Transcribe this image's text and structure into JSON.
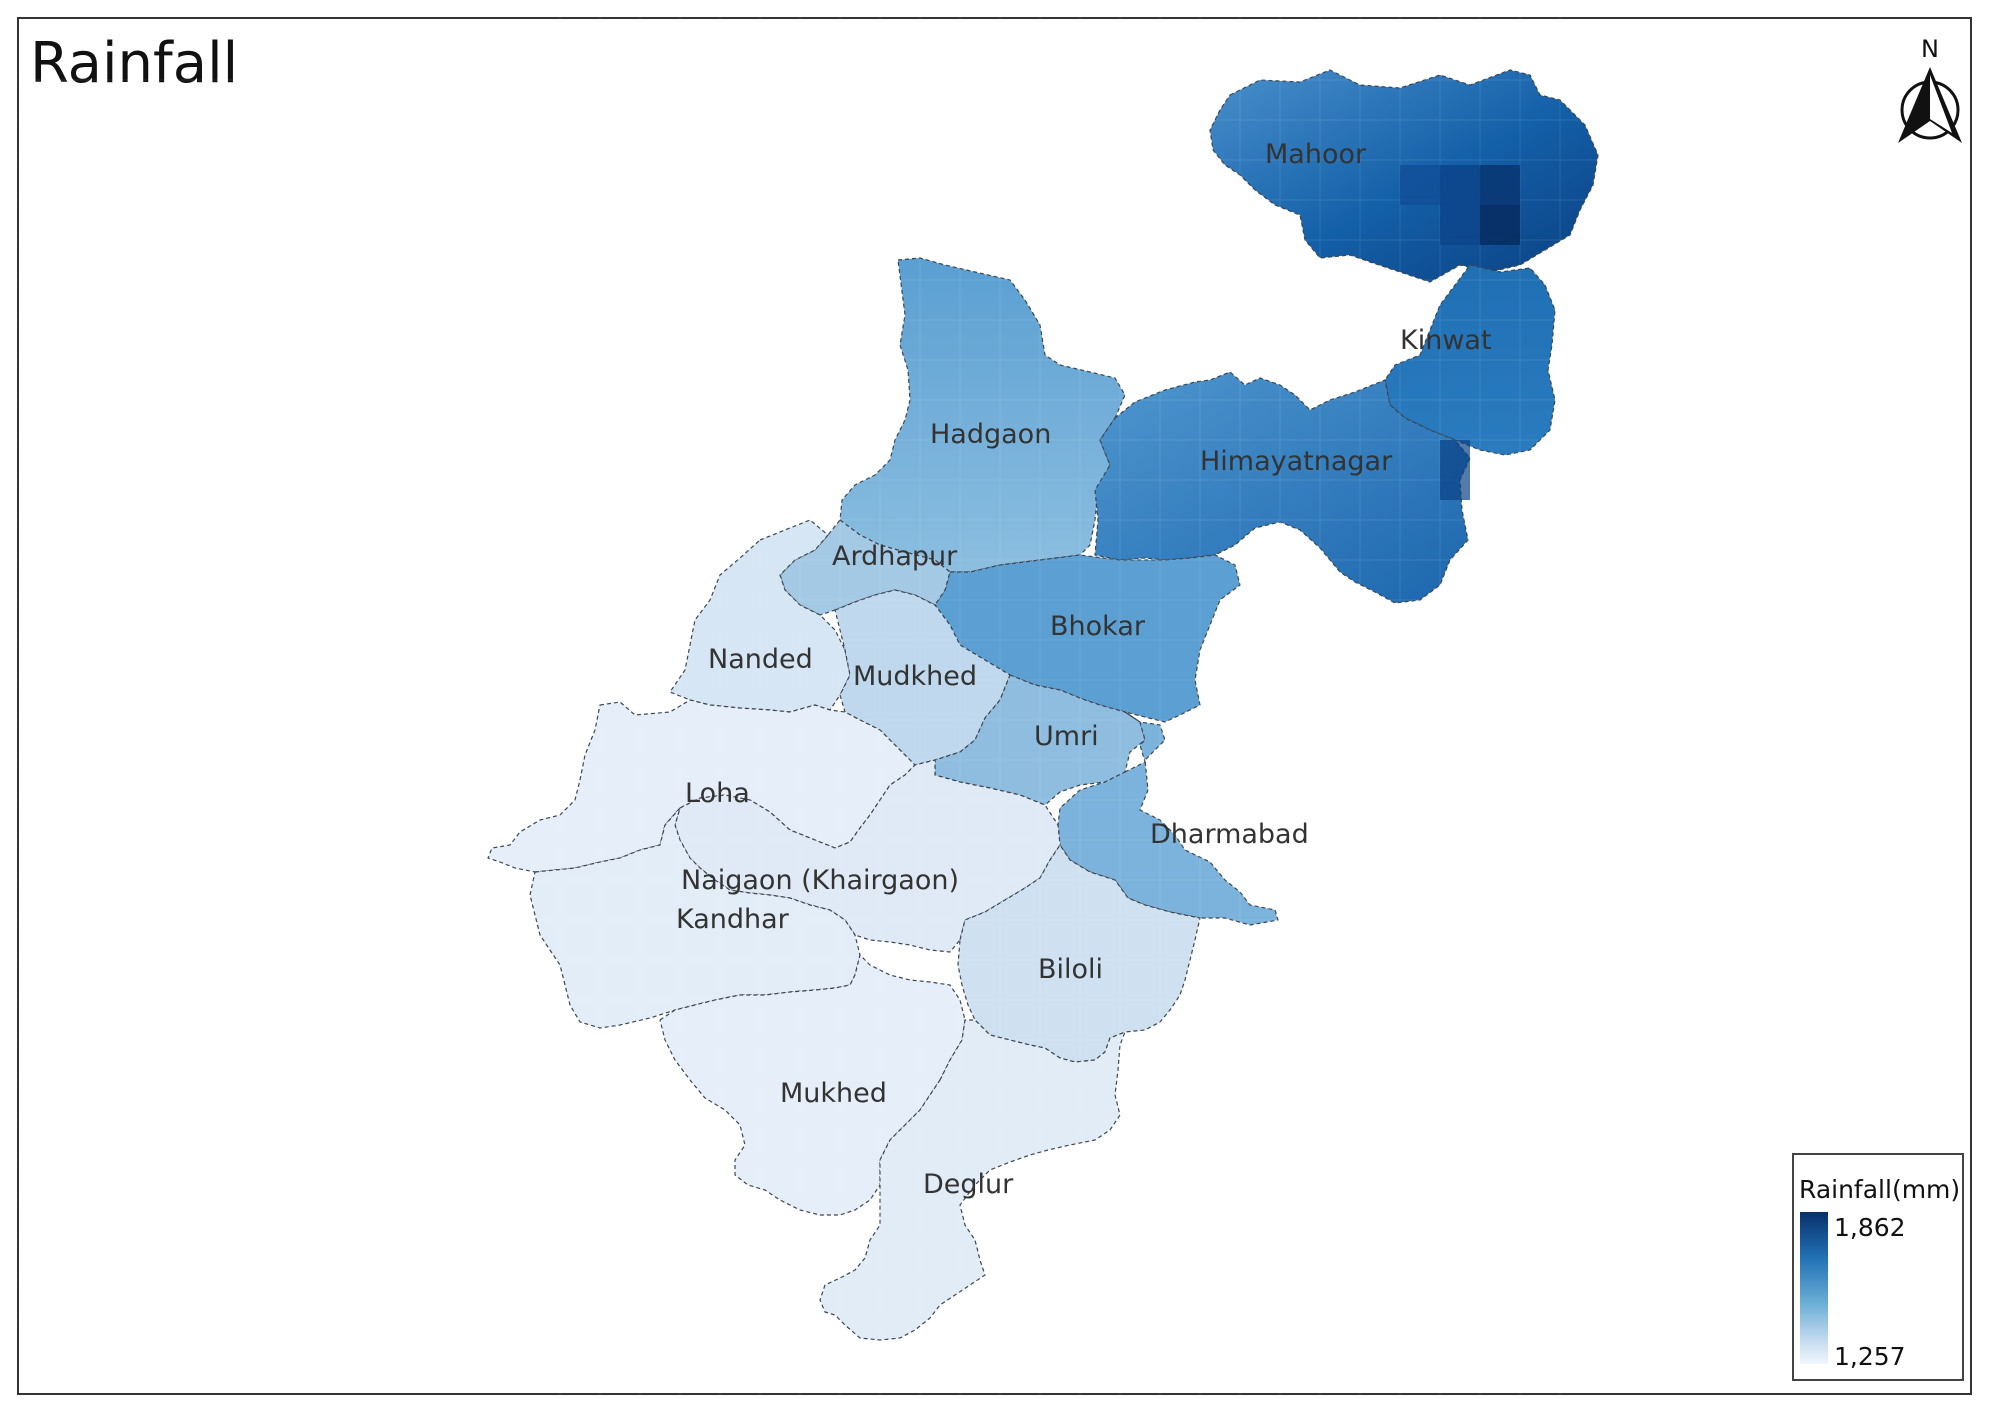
{
  "title": "Rainfall",
  "north_arrow_label": "N",
  "legend": {
    "title": "Rainfall(mm)",
    "max_label": "1,862",
    "min_label": "1,257",
    "color_max": "#08306b",
    "color_min": "#f0f6fd"
  },
  "taluka_labels": {
    "mahoor": "Mahoor",
    "kinwat": "Kinwat",
    "hadgaon": "Hadgaon",
    "himayatnagar": "Himayatnagar",
    "ardhapur": "Ardhapur",
    "bhokar": "Bhokar",
    "nanded": "Nanded",
    "mudkhed": "Mudkhed",
    "umri": "Umri",
    "loha": "Loha",
    "dharmabad": "Dharmabad",
    "naigaon": "Naigaon (Khairgaon)",
    "kandhar": "Kandhar",
    "biloli": "Biloli",
    "mukhed": "Mukhed",
    "deglur": "Deglur"
  }
}
